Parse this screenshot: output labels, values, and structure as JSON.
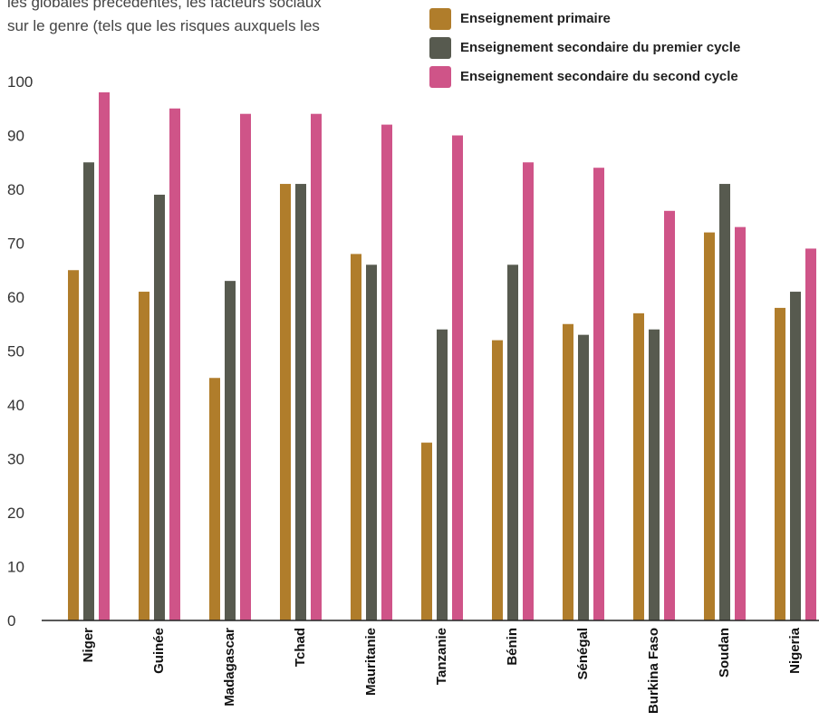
{
  "intro_text": [
    "les globales précédentes, les facteurs sociaux",
    "sur le genre (tels que les risques auxquels les"
  ],
  "chart_data": {
    "type": "bar",
    "title": "",
    "xlabel": "",
    "ylabel": "",
    "ylim": [
      0,
      100
    ],
    "yticks": [
      0,
      10,
      20,
      30,
      40,
      50,
      60,
      70,
      80,
      90,
      100
    ],
    "grid": false,
    "legend_position": "top-right",
    "categories": [
      "Niger",
      "Guinée",
      "Madagascar",
      "Tchad",
      "Mauritanie",
      "Tanzanie",
      "Bénin",
      "Sénégal",
      "Burkina Faso",
      "Soudan",
      "Nigeria"
    ],
    "series": [
      {
        "name": "Enseignement primaire",
        "color": "#b07d2b",
        "values": [
          65,
          61,
          45,
          81,
          68,
          33,
          52,
          55,
          57,
          72,
          58
        ]
      },
      {
        "name": "Enseignement secondaire du premier cycle",
        "color": "#575a4f",
        "values": [
          85,
          79,
          63,
          81,
          66,
          54,
          66,
          53,
          54,
          81,
          61
        ]
      },
      {
        "name": "Enseignement secondaire du second cycle",
        "color": "#cf5488",
        "values": [
          98,
          95,
          94,
          94,
          92,
          90,
          85,
          84,
          76,
          73,
          69
        ]
      }
    ]
  }
}
